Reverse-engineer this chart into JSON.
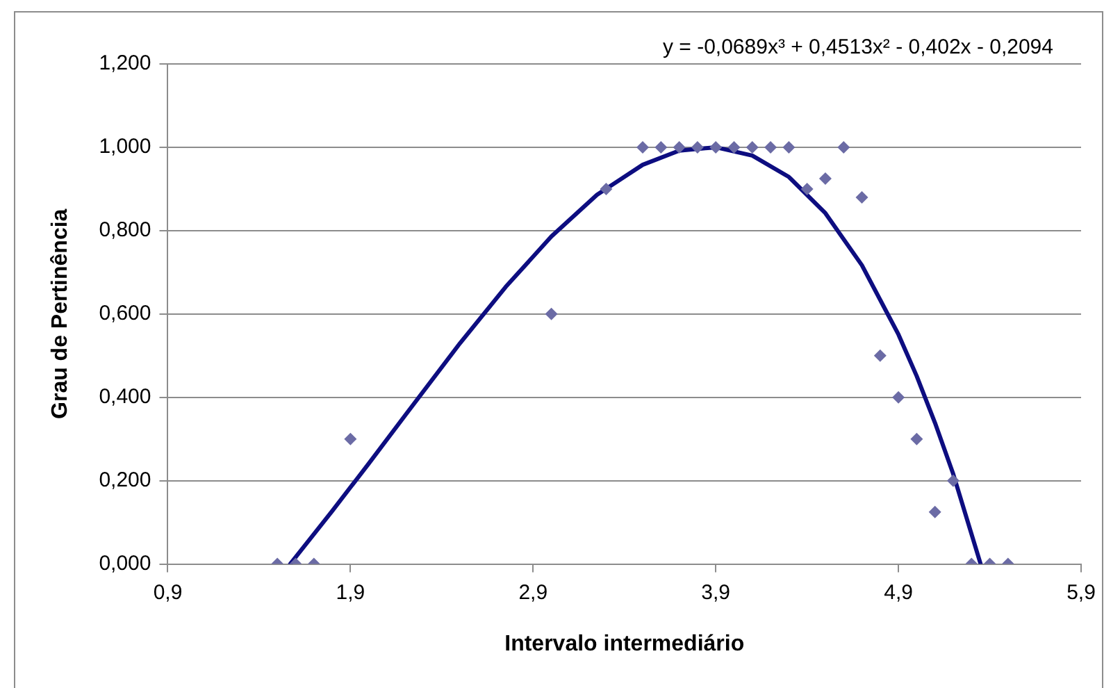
{
  "chart_data": {
    "type": "scatter",
    "xlabel": "Intervalo intermediário",
    "ylabel": "Grau de Pertinência",
    "annotations": [
      "y = -0,0689x³ + 0,4513x² - 0,402x - 0,2094"
    ],
    "xlim": [
      0.9,
      5.9
    ],
    "ylim": [
      0,
      1.2
    ],
    "xticks": [
      {
        "value": 0.9,
        "label": "0,9"
      },
      {
        "value": 1.9,
        "label": "1,9"
      },
      {
        "value": 2.9,
        "label": "2,9"
      },
      {
        "value": 3.9,
        "label": "3,9"
      },
      {
        "value": 4.9,
        "label": "4,9"
      },
      {
        "value": 5.9,
        "label": "5,9"
      }
    ],
    "yticks": [
      {
        "value": 0,
        "label": "0,000"
      },
      {
        "value": 0.2,
        "label": "0,200"
      },
      {
        "value": 0.4,
        "label": "0,400"
      },
      {
        "value": 0.6,
        "label": "0,600"
      },
      {
        "value": 0.8,
        "label": "0,800"
      },
      {
        "value": 1,
        "label": "1,000"
      },
      {
        "value": 1.2,
        "label": "1,200"
      }
    ],
    "grid": "y",
    "legend": false,
    "marker": "diamond",
    "series": [
      {
        "type": "scatter",
        "color": "#6b6ba5",
        "x": [
          1.5,
          1.6,
          1.7,
          1.9,
          3.0,
          3.3,
          3.5,
          3.6,
          3.7,
          3.8,
          3.9,
          4.0,
          4.1,
          4.2,
          4.3,
          4.4,
          4.5,
          4.6,
          4.7,
          4.8,
          4.9,
          5.0,
          5.1,
          5.2,
          5.3,
          5.4,
          5.5
        ],
        "values": [
          0,
          0,
          0,
          0.3,
          0.6,
          0.9,
          1,
          1,
          1,
          1,
          1,
          1,
          1,
          1,
          1,
          0.9,
          0.925,
          1,
          0.88,
          0.5,
          0.4,
          0.3,
          0.125,
          0.2,
          0,
          0,
          0
        ]
      },
      {
        "type": "line",
        "color": "#0d0d80",
        "marker": "none",
        "line_style": "solid",
        "x": [
          1.57,
          1.8,
          2.0,
          2.2,
          2.5,
          2.75,
          3.0,
          3.25,
          3.5,
          3.7,
          3.9,
          4.1,
          4.3,
          4.5,
          4.7,
          4.9,
          5.0,
          5.1,
          5.2,
          5.35
        ],
        "values": [
          0,
          0.127,
          0.241,
          0.357,
          0.53,
          0.665,
          0.786,
          0.886,
          0.958,
          0.992,
          1,
          0.98,
          0.929,
          0.842,
          0.717,
          0.551,
          0.451,
          0.339,
          0.216,
          0
        ]
      }
    ]
  }
}
